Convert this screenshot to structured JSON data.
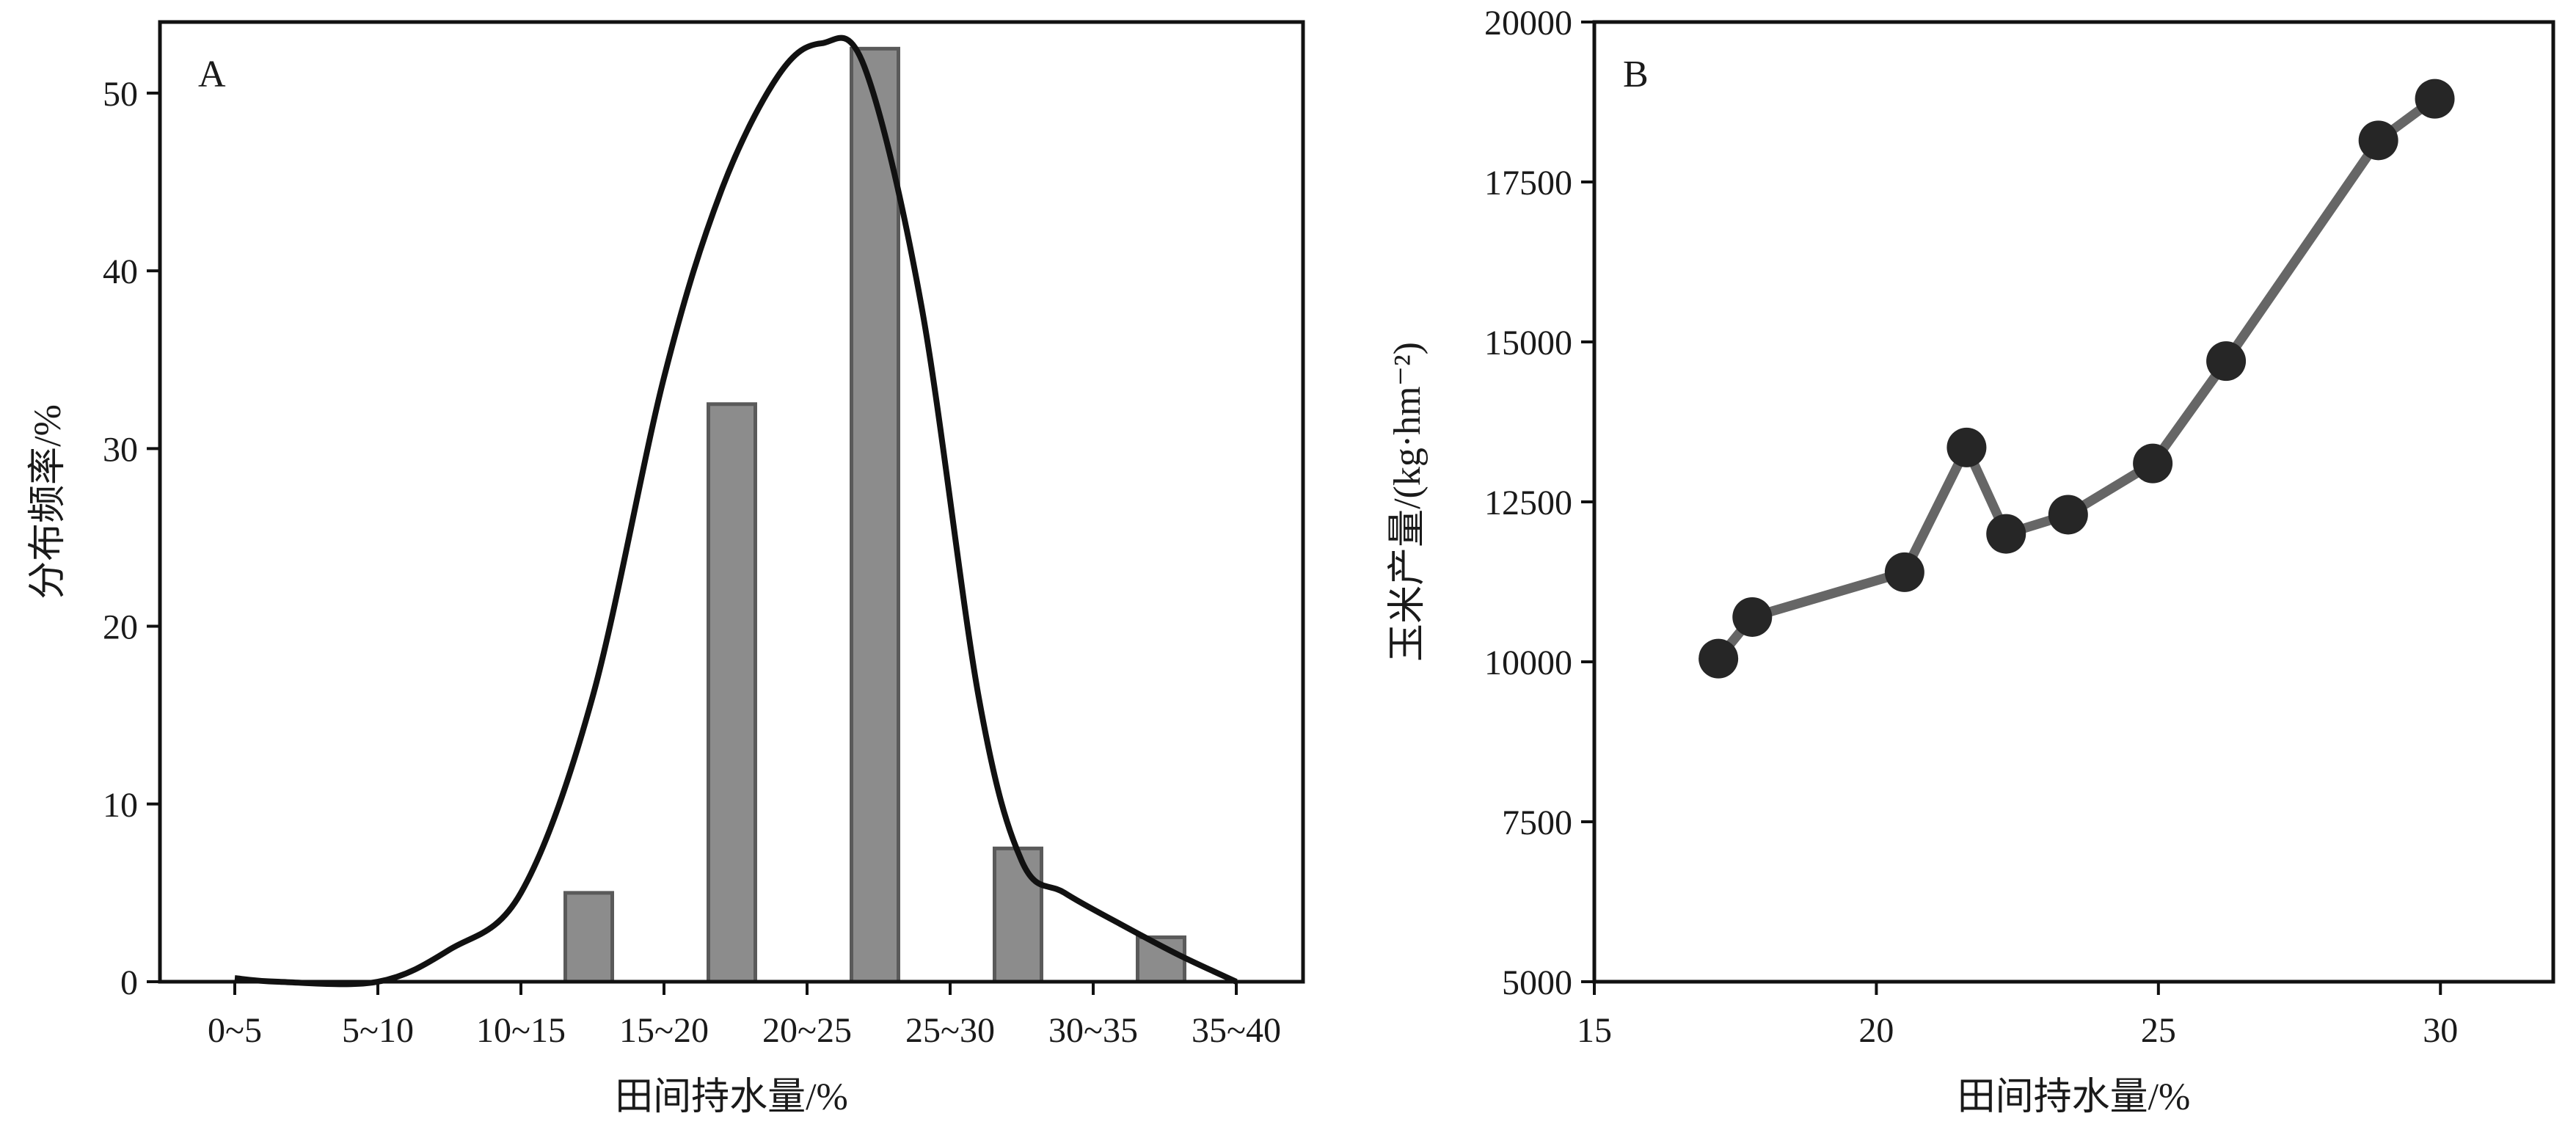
{
  "chart_data": [
    {
      "panel": "A",
      "type": "bar",
      "categories": [
        "0~5",
        "5~10",
        "10~15",
        "15~20",
        "20~25",
        "25~30",
        "30~35",
        "35~40"
      ],
      "series": [
        {
          "values": [
            0,
            0,
            5.0,
            32.5,
            52.5,
            7.5,
            2.5,
            0
          ]
        }
      ],
      "overlay": {
        "type": "line",
        "smooth": true,
        "x_position": [
          0,
          0.3,
          1,
          1.5,
          2,
          2.5,
          3,
          3.4,
          3.8,
          4.1,
          4.4,
          4.8,
          5.2,
          5.5,
          5.8,
          6.2,
          6.6,
          7
        ],
        "y": [
          0.2,
          0,
          0,
          1.8,
          5,
          16,
          34,
          44.5,
          51,
          52.8,
          51.5,
          38,
          16,
          6.8,
          5,
          3.2,
          1.5,
          0
        ],
        "color": "#111111"
      },
      "xlabel": "田间持水量/%",
      "ylabel": "分布频率/%",
      "ylim": [
        0,
        54
      ],
      "yticks": [
        0,
        10,
        20,
        30,
        40,
        50
      ],
      "grid": false,
      "bar_color": "#8c8c8c",
      "bar_edge_color": "#5a5a5a"
    },
    {
      "panel": "B",
      "type": "line",
      "markers": true,
      "x": [
        17.2,
        17.8,
        20.5,
        21.6,
        22.3,
        23.4,
        24.9,
        26.2,
        28.9,
        29.9
      ],
      "series": [
        {
          "values": [
            10050,
            10700,
            11400,
            13350,
            12000,
            12300,
            13100,
            14700,
            18150,
            18800
          ]
        }
      ],
      "xlabel": "田间持水量/%",
      "ylabel": "玉米产量/(kg·hm⁻²)",
      "xlim": [
        15,
        32
      ],
      "ylim": [
        5000,
        20000
      ],
      "xticks": [
        15,
        20,
        25,
        30
      ],
      "yticks": [
        5000,
        7500,
        10000,
        12500,
        15000,
        17500,
        20000
      ],
      "grid": false,
      "line_color": "#666666",
      "marker_color": "#262626"
    }
  ]
}
